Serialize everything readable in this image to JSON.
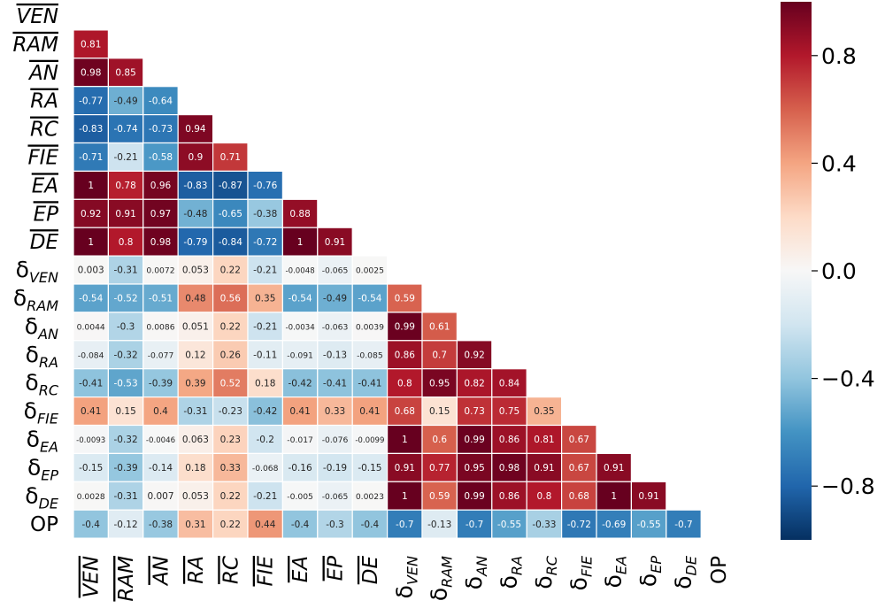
{
  "chart_data": {
    "type": "heatmap",
    "title": "",
    "xlabel": "",
    "ylabel": "",
    "mask": "upper-triangle including diagonal",
    "row_labels": [
      {
        "base": "VEN",
        "overline": true
      },
      {
        "base": "RAM",
        "overline": true
      },
      {
        "base": "AN",
        "overline": true
      },
      {
        "base": "RA",
        "overline": true
      },
      {
        "base": "RC",
        "overline": true
      },
      {
        "base": "FIE",
        "overline": true
      },
      {
        "base": "EA",
        "overline": true
      },
      {
        "base": "EP",
        "overline": true
      },
      {
        "base": "DE",
        "overline": true
      },
      {
        "base": "δ",
        "sub": "VEN"
      },
      {
        "base": "δ",
        "sub": "RAM"
      },
      {
        "base": "δ",
        "sub": "AN"
      },
      {
        "base": "δ",
        "sub": "RA"
      },
      {
        "base": "δ",
        "sub": "RC"
      },
      {
        "base": "δ",
        "sub": "FIE"
      },
      {
        "base": "δ",
        "sub": "EA"
      },
      {
        "base": "δ",
        "sub": "EP"
      },
      {
        "base": "δ",
        "sub": "DE"
      },
      {
        "base": "OP"
      }
    ],
    "col_labels": [
      {
        "base": "VEN",
        "overline": true
      },
      {
        "base": "RAM",
        "overline": true
      },
      {
        "base": "AN",
        "overline": true
      },
      {
        "base": "RA",
        "overline": true
      },
      {
        "base": "RC",
        "overline": true
      },
      {
        "base": "FIE",
        "overline": true
      },
      {
        "base": "EA",
        "overline": true
      },
      {
        "base": "EP",
        "overline": true
      },
      {
        "base": "DE",
        "overline": true
      },
      {
        "base": "δ",
        "sub": "VEN"
      },
      {
        "base": "δ",
        "sub": "RAM"
      },
      {
        "base": "δ",
        "sub": "AN"
      },
      {
        "base": "δ",
        "sub": "RA"
      },
      {
        "base": "δ",
        "sub": "RC"
      },
      {
        "base": "δ",
        "sub": "FIE"
      },
      {
        "base": "δ",
        "sub": "EA"
      },
      {
        "base": "δ",
        "sub": "EP"
      },
      {
        "base": "δ",
        "sub": "DE"
      },
      {
        "base": "OP"
      }
    ],
    "values": [
      [],
      [
        "0.81"
      ],
      [
        "0.98",
        "0.85"
      ],
      [
        "-0.77",
        "-0.49",
        "-0.64"
      ],
      [
        "-0.83",
        "-0.74",
        "-0.73",
        "0.94"
      ],
      [
        "-0.71",
        "-0.21",
        "-0.58",
        "0.9",
        "0.71"
      ],
      [
        "1",
        "0.78",
        "0.96",
        "-0.83",
        "-0.87",
        "-0.76"
      ],
      [
        "0.92",
        "0.91",
        "0.97",
        "-0.48",
        "-0.65",
        "-0.38",
        "0.88"
      ],
      [
        "1",
        "0.8",
        "0.98",
        "-0.79",
        "-0.84",
        "-0.72",
        "1",
        "0.91"
      ],
      [
        "0.003",
        "-0.31",
        "0.0072",
        "0.053",
        "0.22",
        "-0.21",
        "-0.0048",
        "-0.065",
        "0.0025"
      ],
      [
        "-0.54",
        "-0.52",
        "-0.51",
        "0.48",
        "0.56",
        "0.35",
        "-0.54",
        "-0.49",
        "-0.54",
        "0.59"
      ],
      [
        "0.0044",
        "-0.3",
        "0.0086",
        "0.051",
        "0.22",
        "-0.21",
        "-0.0034",
        "-0.063",
        "0.0039",
        "0.99",
        "0.61"
      ],
      [
        "-0.084",
        "-0.32",
        "-0.077",
        "0.12",
        "0.26",
        "-0.11",
        "-0.091",
        "-0.13",
        "-0.085",
        "0.86",
        "0.7",
        "0.92"
      ],
      [
        "-0.41",
        "-0.53",
        "-0.39",
        "0.39",
        "0.52",
        "0.18",
        "-0.42",
        "-0.41",
        "-0.41",
        "0.8",
        "0.95",
        "0.82",
        "0.84"
      ],
      [
        "0.41",
        "0.15",
        "0.4",
        "-0.31",
        "-0.23",
        "-0.42",
        "0.41",
        "0.33",
        "0.41",
        "0.68",
        "0.15",
        "0.73",
        "0.75",
        "0.35"
      ],
      [
        "-0.0093",
        "-0.32",
        "-0.0046",
        "0.063",
        "0.23",
        "-0.2",
        "-0.017",
        "-0.076",
        "-0.0099",
        "1",
        "0.6",
        "0.99",
        "0.86",
        "0.81",
        "0.67"
      ],
      [
        "-0.15",
        "-0.39",
        "-0.14",
        "0.18",
        "0.33",
        "-0.068",
        "-0.16",
        "-0.19",
        "-0.15",
        "0.91",
        "0.77",
        "0.95",
        "0.98",
        "0.91",
        "0.67",
        "0.91"
      ],
      [
        "0.0028",
        "-0.31",
        "0.007",
        "0.053",
        "0.22",
        "-0.21",
        "-0.005",
        "-0.065",
        "0.0023",
        "1",
        "0.59",
        "0.99",
        "0.86",
        "0.8",
        "0.68",
        "1",
        "0.91"
      ],
      [
        "-0.4",
        "-0.12",
        "-0.38",
        "0.31",
        "0.22",
        "0.44",
        "-0.4",
        "-0.3",
        "-0.4",
        "-0.7",
        "-0.13",
        "-0.7",
        "-0.55",
        "-0.33",
        "-0.72",
        "-0.69",
        "-0.55",
        "-0.7"
      ]
    ],
    "colorbar": {
      "colormap": "RdBu_r",
      "vmin": -1,
      "vmax": 1,
      "ticks": [
        0.8,
        0.4,
        0.0,
        -0.4,
        -0.8
      ],
      "tick_labels": [
        "0.8",
        "0.4",
        "0.0",
        "−0.4",
        "−0.8"
      ]
    }
  }
}
